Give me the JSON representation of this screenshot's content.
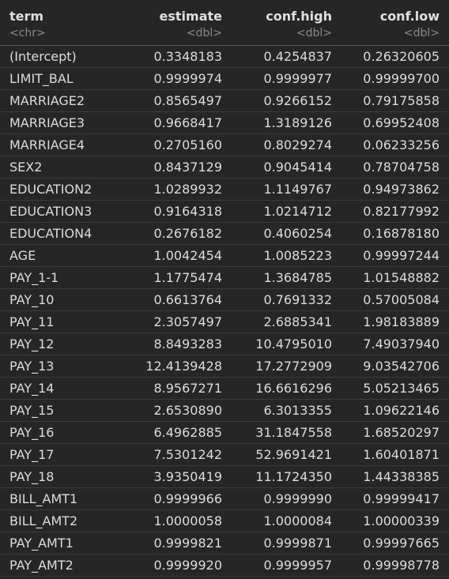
{
  "columns": [
    {
      "name": "term",
      "type": "<chr>"
    },
    {
      "name": "estimate",
      "type": "<dbl>"
    },
    {
      "name": "conf.high",
      "type": "<dbl>"
    },
    {
      "name": "conf.low",
      "type": "<dbl>"
    }
  ],
  "rows": [
    [
      "(Intercept)",
      "0.3348183",
      "0.4254837",
      "0.26320605"
    ],
    [
      "LIMIT_BAL",
      "0.9999974",
      "0.9999977",
      "0.99999700"
    ],
    [
      "MARRIAGE2",
      "0.8565497",
      "0.9266152",
      "0.79175858"
    ],
    [
      "MARRIAGE3",
      "0.9668417",
      "1.3189126",
      "0.69952408"
    ],
    [
      "MARRIAGE4",
      "0.2705160",
      "0.8029274",
      "0.06233256"
    ],
    [
      "SEX2",
      "0.8437129",
      "0.9045414",
      "0.78704758"
    ],
    [
      "EDUCATION2",
      "1.0289932",
      "1.1149767",
      "0.94973862"
    ],
    [
      "EDUCATION3",
      "0.9164318",
      "1.0214712",
      "0.82177992"
    ],
    [
      "EDUCATION4",
      "0.2676182",
      "0.4060254",
      "0.16878180"
    ],
    [
      "AGE",
      "1.0042454",
      "1.0085223",
      "0.99997244"
    ],
    [
      "PAY_1-1",
      "1.1775474",
      "1.3684785",
      "1.01548882"
    ],
    [
      "PAY_10",
      "0.6613764",
      "0.7691332",
      "0.57005084"
    ],
    [
      "PAY_11",
      "2.3057497",
      "2.6885341",
      "1.98183889"
    ],
    [
      "PAY_12",
      "8.8493283",
      "10.4795010",
      "7.49037940"
    ],
    [
      "PAY_13",
      "12.4139428",
      "17.2772909",
      "9.03542706"
    ],
    [
      "PAY_14",
      "8.9567271",
      "16.6616296",
      "5.05213465"
    ],
    [
      "PAY_15",
      "2.6530890",
      "6.3013355",
      "1.09622146"
    ],
    [
      "PAY_16",
      "6.4962885",
      "31.1847558",
      "1.68520297"
    ],
    [
      "PAY_17",
      "7.5301242",
      "52.9691421",
      "1.60401871"
    ],
    [
      "PAY_18",
      "3.9350419",
      "11.1724350",
      "1.44338385"
    ],
    [
      "BILL_AMT1",
      "0.9999966",
      "0.9999990",
      "0.99999417"
    ],
    [
      "BILL_AMT2",
      "1.0000058",
      "1.0000084",
      "1.00000339"
    ],
    [
      "PAY_AMT1",
      "0.9999821",
      "0.9999871",
      "0.99997665"
    ],
    [
      "PAY_AMT2",
      "0.9999920",
      "0.9999957",
      "0.99998778"
    ]
  ]
}
